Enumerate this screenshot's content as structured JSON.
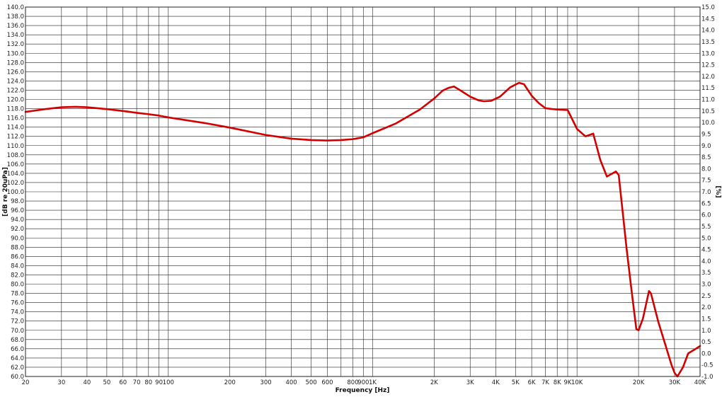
{
  "chart_data": {
    "type": "line",
    "title": "",
    "xlabel": "Frequency [Hz]",
    "ylabel": "[dB re 20uPa]",
    "y2label": "[%]",
    "x_scale": "log",
    "xlim": [
      20,
      40000
    ],
    "ylim": [
      60,
      140
    ],
    "y2lim": [
      -1.0,
      15.0
    ],
    "grid": true,
    "legend": "none",
    "colors": {
      "line": "#d40000",
      "grid": "#222222",
      "background": "#ffffff"
    },
    "x_ticks": [
      {
        "value": 20,
        "label": "20"
      },
      {
        "value": 30,
        "label": "30"
      },
      {
        "value": 40,
        "label": "40"
      },
      {
        "value": 50,
        "label": "50"
      },
      {
        "value": 60,
        "label": "60"
      },
      {
        "value": 70,
        "label": "70"
      },
      {
        "value": 80,
        "label": "80"
      },
      {
        "value": 90,
        "label": "90"
      },
      {
        "value": 100,
        "label": "100"
      },
      {
        "value": 200,
        "label": "200"
      },
      {
        "value": 300,
        "label": "300"
      },
      {
        "value": 400,
        "label": "400"
      },
      {
        "value": 500,
        "label": "500"
      },
      {
        "value": 600,
        "label": "600"
      },
      {
        "value": 800,
        "label": "800"
      },
      {
        "value": 900,
        "label": "900"
      },
      {
        "value": 1000,
        "label": "1K"
      },
      {
        "value": 2000,
        "label": "2K"
      },
      {
        "value": 3000,
        "label": "3K"
      },
      {
        "value": 4000,
        "label": "4K"
      },
      {
        "value": 5000,
        "label": "5K"
      },
      {
        "value": 6000,
        "label": "6K"
      },
      {
        "value": 7000,
        "label": "7K"
      },
      {
        "value": 8000,
        "label": "8K"
      },
      {
        "value": 9000,
        "label": "9K"
      },
      {
        "value": 10000,
        "label": "10K"
      },
      {
        "value": 20000,
        "label": "20K"
      },
      {
        "value": 30000,
        "label": "30K"
      },
      {
        "value": 40000,
        "label": "40K"
      }
    ],
    "x_grid_extra": [
      700
    ],
    "y_ticks": [
      {
        "value": 60,
        "label": "60.0"
      },
      {
        "value": 62,
        "label": "62.0"
      },
      {
        "value": 64,
        "label": "64.0"
      },
      {
        "value": 66,
        "label": "66.0"
      },
      {
        "value": 68,
        "label": "68.0"
      },
      {
        "value": 70,
        "label": "70.0"
      },
      {
        "value": 72,
        "label": "72.0"
      },
      {
        "value": 74,
        "label": "74.0"
      },
      {
        "value": 76,
        "label": "76.0"
      },
      {
        "value": 78,
        "label": "78.0"
      },
      {
        "value": 80,
        "label": "80.0"
      },
      {
        "value": 82,
        "label": "82.0"
      },
      {
        "value": 84,
        "label": "84.0"
      },
      {
        "value": 86,
        "label": "86.0"
      },
      {
        "value": 88,
        "label": "88.0"
      },
      {
        "value": 90,
        "label": "90.0"
      },
      {
        "value": 92,
        "label": "92.0"
      },
      {
        "value": 94,
        "label": "94.0"
      },
      {
        "value": 96,
        "label": "96.0"
      },
      {
        "value": 98,
        "label": "98.0"
      },
      {
        "value": 100,
        "label": "100.0"
      },
      {
        "value": 102,
        "label": "102.0"
      },
      {
        "value": 104,
        "label": "104.0"
      },
      {
        "value": 106,
        "label": "106.0"
      },
      {
        "value": 108,
        "label": "108.0"
      },
      {
        "value": 110,
        "label": "110.0"
      },
      {
        "value": 112,
        "label": "112.0"
      },
      {
        "value": 114,
        "label": "114.0"
      },
      {
        "value": 116,
        "label": "116.0"
      },
      {
        "value": 118,
        "label": "118.0"
      },
      {
        "value": 120,
        "label": "120.0"
      },
      {
        "value": 122,
        "label": "122.0"
      },
      {
        "value": 124,
        "label": "124.0"
      },
      {
        "value": 126,
        "label": "126.0"
      },
      {
        "value": 128,
        "label": "128.0"
      },
      {
        "value": 130,
        "label": "130.0"
      },
      {
        "value": 132,
        "label": "132.0"
      },
      {
        "value": 134,
        "label": "134.0"
      },
      {
        "value": 136,
        "label": "136.0"
      },
      {
        "value": 138,
        "label": "138.0"
      },
      {
        "value": 140,
        "label": "140.0"
      }
    ],
    "y2_ticks": [
      {
        "value": -1.0,
        "label": "-1.0"
      },
      {
        "value": -0.5,
        "label": "-0.5"
      },
      {
        "value": 0.0,
        "label": "0.0"
      },
      {
        "value": 0.5,
        "label": "0.5"
      },
      {
        "value": 1.0,
        "label": "1.0"
      },
      {
        "value": 1.5,
        "label": "1.5"
      },
      {
        "value": 2.0,
        "label": "2.0"
      },
      {
        "value": 2.5,
        "label": "2.5"
      },
      {
        "value": 3.0,
        "label": "3.0"
      },
      {
        "value": 3.5,
        "label": "3.5"
      },
      {
        "value": 4.0,
        "label": "4.0"
      },
      {
        "value": 4.5,
        "label": "4.5"
      },
      {
        "value": 5.0,
        "label": "5.0"
      },
      {
        "value": 5.5,
        "label": "5.5"
      },
      {
        "value": 6.0,
        "label": "6.0"
      },
      {
        "value": 6.5,
        "label": "6.5"
      },
      {
        "value": 7.0,
        "label": "7.0"
      },
      {
        "value": 7.5,
        "label": "7.5"
      },
      {
        "value": 8.0,
        "label": "8.0"
      },
      {
        "value": 8.5,
        "label": "8.5"
      },
      {
        "value": 9.0,
        "label": "9.0"
      },
      {
        "value": 9.5,
        "label": "9.5"
      },
      {
        "value": 10.0,
        "label": "10.0"
      },
      {
        "value": 10.5,
        "label": "10.5"
      },
      {
        "value": 11.0,
        "label": "11.0"
      },
      {
        "value": 11.5,
        "label": "11.5"
      },
      {
        "value": 12.0,
        "label": "12.0"
      },
      {
        "value": 12.5,
        "label": "12.5"
      },
      {
        "value": 13.0,
        "label": "13.0"
      },
      {
        "value": 13.5,
        "label": "13.5"
      },
      {
        "value": 14.0,
        "label": "14.0"
      },
      {
        "value": 14.5,
        "label": "14.5"
      },
      {
        "value": 15.0,
        "label": "15.0"
      }
    ],
    "series": [
      {
        "points": [
          [
            20,
            117.3
          ],
          [
            25,
            117.9
          ],
          [
            30,
            118.3
          ],
          [
            35,
            118.4
          ],
          [
            40,
            118.3
          ],
          [
            50,
            117.9
          ],
          [
            60,
            117.5
          ],
          [
            70,
            117.1
          ],
          [
            80,
            116.8
          ],
          [
            90,
            116.5
          ],
          [
            100,
            116.1
          ],
          [
            150,
            114.9
          ],
          [
            200,
            113.9
          ],
          [
            300,
            112.3
          ],
          [
            400,
            111.5
          ],
          [
            500,
            111.2
          ],
          [
            600,
            111.1
          ],
          [
            700,
            111.2
          ],
          [
            800,
            111.4
          ],
          [
            900,
            111.8
          ],
          [
            1000,
            112.7
          ],
          [
            1300,
            114.8
          ],
          [
            1700,
            117.8
          ],
          [
            2000,
            120.2
          ],
          [
            2200,
            121.9
          ],
          [
            2350,
            122.5
          ],
          [
            2500,
            122.8
          ],
          [
            2700,
            121.9
          ],
          [
            3000,
            120.6
          ],
          [
            3300,
            119.8
          ],
          [
            3500,
            119.6
          ],
          [
            3800,
            119.7
          ],
          [
            4200,
            120.6
          ],
          [
            4700,
            122.6
          ],
          [
            5200,
            123.6
          ],
          [
            5500,
            123.3
          ],
          [
            6000,
            120.8
          ],
          [
            6500,
            119.2
          ],
          [
            7000,
            118.1
          ],
          [
            8000,
            117.8
          ],
          [
            9000,
            117.7
          ],
          [
            10000,
            113.6
          ],
          [
            11000,
            112.0
          ],
          [
            12000,
            112.6
          ],
          [
            13000,
            106.9
          ],
          [
            14000,
            103.3
          ],
          [
            15500,
            104.4
          ],
          [
            16000,
            103.6
          ],
          [
            17500,
            87.5
          ],
          [
            18500,
            78.5
          ],
          [
            19500,
            70.3
          ],
          [
            20000,
            70.0
          ],
          [
            21000,
            72.5
          ],
          [
            22500,
            78.5
          ],
          [
            23000,
            78.0
          ],
          [
            25000,
            71.8
          ],
          [
            27000,
            67.0
          ],
          [
            29000,
            62.5
          ],
          [
            30000,
            60.8
          ],
          [
            31000,
            60.0
          ],
          [
            33000,
            62.0
          ],
          [
            35000,
            65.0
          ],
          [
            37500,
            65.8
          ],
          [
            40000,
            66.6
          ]
        ]
      }
    ]
  }
}
